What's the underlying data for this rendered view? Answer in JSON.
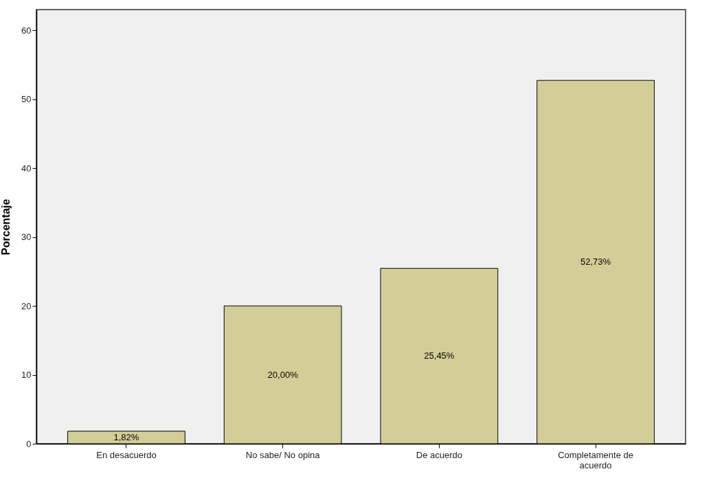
{
  "chart_data": {
    "type": "bar",
    "ylabel": "Porcentaje",
    "categories": [
      "En desacuerdo",
      "No sabe/ No opina",
      "De acuerdo",
      "Completamente de acuerdo"
    ],
    "values": [
      1.82,
      20.0,
      25.45,
      52.73
    ],
    "value_labels": [
      "1,82%",
      "20,00%",
      "25,45%",
      "52,73%"
    ],
    "color": "#d3ce97",
    "ylim": [
      0,
      63
    ],
    "yticks": [
      0,
      10,
      20,
      30,
      40,
      50,
      60
    ],
    "grid": false
  }
}
